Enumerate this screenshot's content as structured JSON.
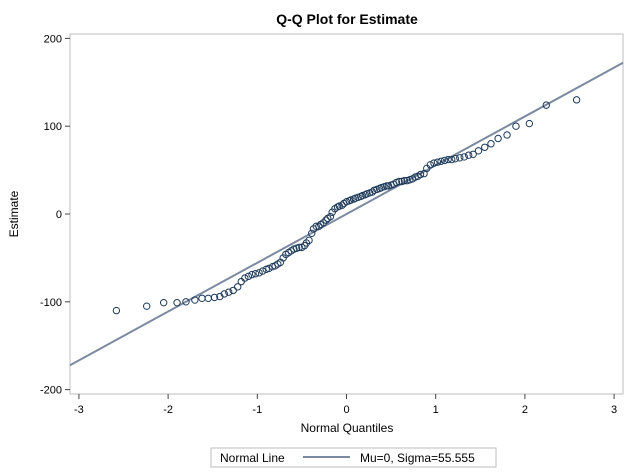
{
  "chart_data": {
    "type": "scatter",
    "title": "Q-Q Plot for Estimate",
    "xlabel": "Normal Quantiles",
    "ylabel": "Estimate",
    "xlim": [
      -3.1,
      3.1
    ],
    "ylim": [
      -205,
      205
    ],
    "x_ticks": [
      -3,
      -2,
      -1,
      0,
      1,
      2,
      3
    ],
    "y_ticks": [
      -200,
      -100,
      0,
      100,
      200
    ],
    "grid": false,
    "marker_color": "#1f3b5a",
    "line_color": "#7a8aa0",
    "series": [
      {
        "values": [
          [
            -2.58,
            -110
          ],
          [
            -2.24,
            -105
          ],
          [
            -2.05,
            -101
          ],
          [
            -1.9,
            -101
          ],
          [
            -1.8,
            -100
          ],
          [
            -1.7,
            -98
          ],
          [
            -1.62,
            -96
          ],
          [
            -1.55,
            -96
          ],
          [
            -1.48,
            -95
          ],
          [
            -1.42,
            -94
          ],
          [
            -1.37,
            -91
          ],
          [
            -1.32,
            -89
          ],
          [
            -1.27,
            -87
          ],
          [
            -1.22,
            -83
          ],
          [
            -1.18,
            -77
          ],
          [
            -1.14,
            -73
          ],
          [
            -1.1,
            -71
          ],
          [
            -1.06,
            -69
          ],
          [
            -1.02,
            -68
          ],
          [
            -0.98,
            -67
          ],
          [
            -0.94,
            -65
          ],
          [
            -0.9,
            -63
          ],
          [
            -0.87,
            -62
          ],
          [
            -0.83,
            -60
          ],
          [
            -0.8,
            -59
          ],
          [
            -0.77,
            -57
          ],
          [
            -0.74,
            -55
          ],
          [
            -0.71,
            -50
          ],
          [
            -0.68,
            -46
          ],
          [
            -0.65,
            -44
          ],
          [
            -0.62,
            -42
          ],
          [
            -0.59,
            -40
          ],
          [
            -0.56,
            -39
          ],
          [
            -0.53,
            -38
          ],
          [
            -0.5,
            -38
          ],
          [
            -0.47,
            -36
          ],
          [
            -0.45,
            -33
          ],
          [
            -0.42,
            -30
          ],
          [
            -0.39,
            -22
          ],
          [
            -0.37,
            -17
          ],
          [
            -0.34,
            -14
          ],
          [
            -0.31,
            -14
          ],
          [
            -0.29,
            -12
          ],
          [
            -0.26,
            -10
          ],
          [
            -0.23,
            -7
          ],
          [
            -0.21,
            -5
          ],
          [
            -0.18,
            -3
          ],
          [
            -0.16,
            2
          ],
          [
            -0.13,
            6
          ],
          [
            -0.1,
            8
          ],
          [
            -0.08,
            9
          ],
          [
            -0.05,
            10
          ],
          [
            -0.03,
            12
          ],
          [
            0.0,
            14
          ],
          [
            0.03,
            15
          ],
          [
            0.05,
            16
          ],
          [
            0.08,
            17
          ],
          [
            0.1,
            18
          ],
          [
            0.13,
            19
          ],
          [
            0.16,
            20
          ],
          [
            0.18,
            21
          ],
          [
            0.21,
            22
          ],
          [
            0.23,
            23
          ],
          [
            0.26,
            24
          ],
          [
            0.29,
            25
          ],
          [
            0.31,
            27
          ],
          [
            0.34,
            28
          ],
          [
            0.37,
            29
          ],
          [
            0.39,
            30
          ],
          [
            0.42,
            31
          ],
          [
            0.45,
            32
          ],
          [
            0.47,
            32
          ],
          [
            0.5,
            33
          ],
          [
            0.53,
            34
          ],
          [
            0.56,
            36
          ],
          [
            0.59,
            37
          ],
          [
            0.62,
            37
          ],
          [
            0.65,
            38
          ],
          [
            0.68,
            38
          ],
          [
            0.71,
            39
          ],
          [
            0.74,
            40
          ],
          [
            0.77,
            42
          ],
          [
            0.8,
            43
          ],
          [
            0.83,
            45
          ],
          [
            0.87,
            46
          ],
          [
            0.9,
            52
          ],
          [
            0.94,
            56
          ],
          [
            0.98,
            58
          ],
          [
            1.02,
            59
          ],
          [
            1.06,
            60
          ],
          [
            1.1,
            61
          ],
          [
            1.14,
            62
          ],
          [
            1.18,
            62
          ],
          [
            1.22,
            63
          ],
          [
            1.27,
            64
          ],
          [
            1.32,
            65
          ],
          [
            1.37,
            67
          ],
          [
            1.42,
            68
          ],
          [
            1.48,
            72
          ],
          [
            1.55,
            76
          ],
          [
            1.62,
            80
          ],
          [
            1.7,
            86
          ],
          [
            1.8,
            90
          ],
          [
            1.9,
            100
          ],
          [
            2.05,
            103
          ],
          [
            2.24,
            124
          ],
          [
            2.58,
            130
          ]
        ]
      }
    ],
    "normal_line": {
      "mu": 0,
      "sigma": 55.555
    },
    "legend": {
      "label": "Normal Line",
      "entry": "Mu=0, Sigma=55.555",
      "position": "bottom-center"
    }
  }
}
